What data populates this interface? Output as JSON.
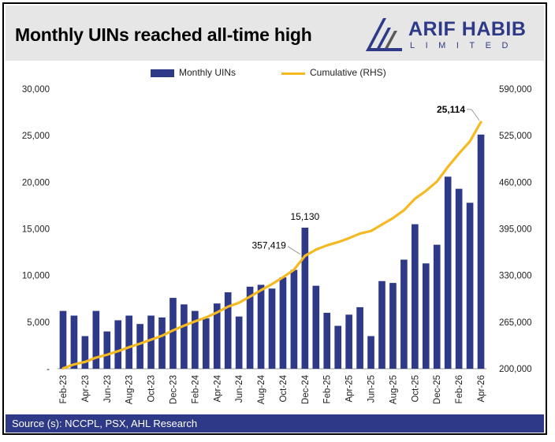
{
  "header": {
    "title": "Monthly UINs reached all-time high",
    "logo_word": "ARIF HABIB",
    "logo_sub": "LIMITED"
  },
  "footer": {
    "source": "Source (s): NCCPL, PSX, AHL Research"
  },
  "colors": {
    "bar": "#2e3a87",
    "line": "#f5b921",
    "header_bg": "#e6e6e6",
    "footer_bg": "#2e3a87"
  },
  "chart_data": {
    "type": "bar",
    "title": "Monthly UINs reached all-time high",
    "categories": [
      "Feb-23",
      "Mar-23",
      "Apr-23",
      "May-23",
      "Jun-23",
      "Jul-23",
      "Aug-23",
      "Sep-23",
      "Oct-23",
      "Nov-23",
      "Dec-23",
      "Jan-24",
      "Feb-24",
      "Mar-24",
      "Apr-24",
      "May-24",
      "Jun-24",
      "Jul-24",
      "Aug-24",
      "Sep-24",
      "Oct-24",
      "Nov-24",
      "Dec-24",
      "Jan-25",
      "Feb-25",
      "Mar-25",
      "Apr-25",
      "May-25",
      "Jun-25",
      "Jul-25",
      "Aug-25",
      "Sep-25",
      "Oct-25",
      "Nov-25",
      "Dec-25",
      "Jan-26",
      "Feb-26",
      "Mar-26",
      "Apr-26"
    ],
    "x_tick_labels": [
      "Feb-23",
      "Apr-23",
      "Jun-23",
      "Aug-23",
      "Oct-23",
      "Dec-23",
      "Feb-24",
      "Apr-24",
      "Jun-24",
      "Aug-24",
      "Oct-24",
      "Dec-24",
      "Feb-25",
      "Apr-25",
      "Jun-25",
      "Aug-25",
      "Oct-25",
      "Dec-25",
      "Feb-26",
      "Apr-26"
    ],
    "series": [
      {
        "name": "Monthly UINs",
        "type": "bar",
        "axis": "left",
        "values": [
          6200,
          5700,
          3500,
          6200,
          4000,
          5200,
          5700,
          4800,
          5700,
          5500,
          7600,
          6900,
          6200,
          5400,
          7000,
          8200,
          5600,
          8800,
          9000,
          8600,
          9800,
          10600,
          15130,
          8900,
          6000,
          4600,
          5800,
          6600,
          3500,
          9400,
          9200,
          11700,
          15500,
          11300,
          13300,
          20600,
          19300,
          17800,
          25114
        ]
      },
      {
        "name": "Cumulative (RHS)",
        "type": "line",
        "axis": "right",
        "values": [
          200500,
          206000,
          209500,
          215500,
          219500,
          224500,
          230000,
          235000,
          240500,
          246000,
          253500,
          260000,
          266000,
          271500,
          278500,
          286500,
          292000,
          300500,
          309500,
          318000,
          327500,
          338000,
          357419,
          366000,
          372000,
          376500,
          382000,
          388500,
          392000,
          401000,
          410000,
          421000,
          437000,
          448000,
          461000,
          481500,
          500000,
          517000,
          544000
        ]
      }
    ],
    "annotations": [
      {
        "label": "15,130",
        "index": 22,
        "series": "Monthly UINs",
        "bold": false
      },
      {
        "label": "357,419",
        "index": 22,
        "series": "Cumulative (RHS)",
        "bold": false
      },
      {
        "label": "25,114",
        "index": 38,
        "series": "Monthly UINs",
        "bold": true
      }
    ],
    "left_axis": {
      "ylim": [
        0,
        30000
      ],
      "ticks": [
        0,
        5000,
        10000,
        15000,
        20000,
        25000,
        30000
      ],
      "tick_labels": [
        "-",
        "5,000",
        "10,000",
        "15,000",
        "20,000",
        "25,000",
        "30,000"
      ]
    },
    "right_axis": {
      "ylim": [
        200000,
        590000
      ],
      "ticks": [
        200000,
        265000,
        330000,
        395000,
        460000,
        525000,
        590000
      ],
      "tick_labels": [
        "200,000",
        "265,000",
        "330,000",
        "395,000",
        "460,000",
        "525,000",
        "590,000"
      ]
    },
    "grid": false,
    "legend_position": "top-center"
  }
}
